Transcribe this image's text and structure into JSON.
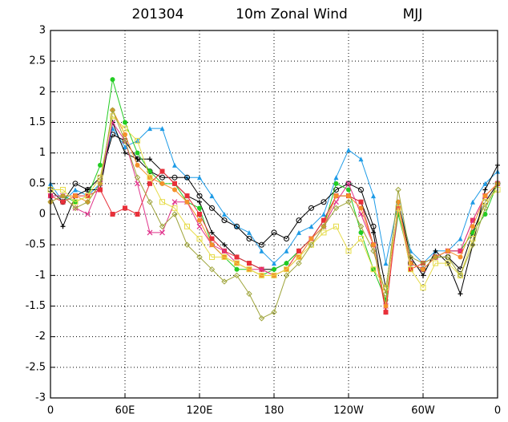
{
  "chart_data": {
    "type": "line",
    "title": [
      "201304",
      "10m Zonal Wind",
      "MJJ"
    ],
    "x": [
      0,
      10,
      20,
      30,
      40,
      50,
      60,
      70,
      80,
      90,
      100,
      110,
      120,
      130,
      140,
      150,
      160,
      170,
      180,
      190,
      200,
      210,
      220,
      230,
      240,
      250,
      260,
      270,
      280,
      290,
      300,
      310,
      320,
      330,
      340,
      350,
      360
    ],
    "xlim": [
      0,
      360
    ],
    "xticks": [
      0,
      {
        "value": 60,
        "label": "60E"
      },
      {
        "value": 120,
        "label": "120E"
      },
      180,
      {
        "value": 240,
        "label": "120W"
      },
      {
        "value": 300,
        "label": "60W"
      },
      {
        "value": 360,
        "label": "0"
      }
    ],
    "ylim": [
      -3,
      3
    ],
    "yticks": [
      -3,
      -2.5,
      -2,
      -1.5,
      -1,
      -0.5,
      0,
      0.5,
      1,
      1.5,
      2,
      2.5,
      3
    ],
    "grid": true,
    "series": [
      {
        "color": "#1e9be6",
        "marker": "triangle",
        "values": [
          0.5,
          0.2,
          0.4,
          0.3,
          0.5,
          1.4,
          1.1,
          1.2,
          1.4,
          1.4,
          0.8,
          0.6,
          0.6,
          0.3,
          0.0,
          -0.2,
          -0.3,
          -0.6,
          -0.8,
          -0.6,
          -0.3,
          -0.2,
          0.0,
          0.6,
          1.05,
          0.9,
          0.3,
          -0.8,
          0.2,
          -0.6,
          -0.8,
          -0.6,
          -0.6,
          -0.4,
          0.2,
          0.5,
          0.7
        ]
      },
      {
        "color": "#000000",
        "marker": "plus",
        "values": [
          0.3,
          -0.2,
          0.3,
          0.4,
          0.4,
          1.5,
          1.0,
          0.9,
          0.9,
          0.7,
          0.5,
          0.3,
          0.2,
          -0.3,
          -0.5,
          -0.7,
          -0.8,
          -0.9,
          -0.9,
          -0.8,
          -0.6,
          -0.4,
          -0.1,
          0.3,
          0.3,
          0.2,
          -0.3,
          -1.6,
          0.2,
          -0.7,
          -1.0,
          -0.6,
          -0.8,
          -1.3,
          -0.5,
          0.4,
          0.8
        ]
      },
      {
        "color": "#000000",
        "marker": "circle-open",
        "values": [
          0.4,
          0.2,
          0.5,
          0.4,
          0.6,
          1.3,
          1.2,
          0.9,
          0.7,
          0.6,
          0.6,
          0.6,
          0.3,
          0.1,
          -0.1,
          -0.2,
          -0.4,
          -0.5,
          -0.3,
          -0.4,
          -0.1,
          0.1,
          0.2,
          0.4,
          0.5,
          0.4,
          -0.2,
          -1.2,
          0.1,
          -0.8,
          -0.9,
          -0.7,
          -0.7,
          -0.9,
          -0.3,
          0.2,
          0.5
        ]
      },
      {
        "color": "#22cc22",
        "marker": "dot",
        "values": [
          0.3,
          0.3,
          0.2,
          0.3,
          0.8,
          2.2,
          1.5,
          1.0,
          0.7,
          0.5,
          0.5,
          0.2,
          0.1,
          -0.5,
          -0.7,
          -0.9,
          -0.9,
          -1.0,
          -0.9,
          -0.8,
          -0.6,
          -0.4,
          -0.2,
          0.5,
          0.4,
          -0.3,
          -0.9,
          -1.4,
          0.0,
          -0.8,
          -0.9,
          -0.7,
          -0.6,
          -0.6,
          -0.3,
          0.0,
          0.5
        ]
      },
      {
        "color": "#e8303a",
        "marker": "square",
        "values": [
          0.3,
          0.2,
          0.3,
          0.3,
          0.4,
          0.0,
          0.1,
          0.0,
          0.5,
          0.7,
          0.5,
          0.3,
          0.0,
          -0.4,
          -0.6,
          -0.7,
          -0.8,
          -0.9,
          -1.0,
          -0.9,
          -0.6,
          -0.4,
          -0.1,
          0.3,
          0.3,
          0.2,
          -0.5,
          -1.6,
          0.1,
          -0.9,
          -0.8,
          -0.7,
          -0.6,
          -0.6,
          -0.1,
          0.3,
          0.5
        ]
      },
      {
        "color": "#e0348c",
        "marker": "cross",
        "values": [
          0.3,
          0.3,
          0.1,
          0.0,
          0.5,
          1.5,
          1.2,
          0.5,
          -0.3,
          -0.3,
          0.2,
          0.2,
          -0.2,
          -0.5,
          -0.6,
          -0.8,
          -0.9,
          -0.9,
          -1.0,
          -0.9,
          -0.7,
          -0.4,
          -0.2,
          0.2,
          0.5,
          0.0,
          -0.5,
          -1.5,
          0.1,
          -0.8,
          -0.9,
          -0.7,
          -0.6,
          -0.6,
          -0.1,
          0.3,
          0.5
        ]
      },
      {
        "color": "#f5912b",
        "marker": "dot",
        "values": [
          0.2,
          0.3,
          0.3,
          0.2,
          0.5,
          1.7,
          1.3,
          0.8,
          0.6,
          0.5,
          0.4,
          0.2,
          -0.1,
          -0.5,
          -0.7,
          -0.8,
          -0.9,
          -1.0,
          -1.0,
          -0.9,
          -0.7,
          -0.4,
          -0.2,
          0.3,
          0.3,
          0.1,
          -0.5,
          -1.5,
          0.2,
          -0.8,
          -0.9,
          -0.7,
          -0.6,
          -0.7,
          -0.2,
          0.3,
          0.5
        ]
      },
      {
        "color": "#e6dc4a",
        "marker": "square-open",
        "values": [
          0.4,
          0.4,
          0.2,
          0.3,
          0.6,
          1.6,
          1.4,
          1.2,
          0.6,
          0.2,
          0.1,
          -0.2,
          -0.4,
          -0.7,
          -0.7,
          -0.8,
          -0.9,
          -1.0,
          -1.0,
          -0.9,
          -0.7,
          -0.5,
          -0.3,
          -0.2,
          -0.6,
          -0.4,
          -0.9,
          -1.2,
          0.1,
          -0.9,
          -1.2,
          -0.8,
          -0.8,
          -1.0,
          -0.4,
          0.2,
          0.4
        ]
      },
      {
        "color": "#9ea43a",
        "marker": "diamond-open",
        "values": [
          0.2,
          0.3,
          0.1,
          0.2,
          0.5,
          1.7,
          1.2,
          0.6,
          0.2,
          -0.2,
          0.0,
          -0.5,
          -0.7,
          -0.9,
          -1.1,
          -1.0,
          -1.3,
          -1.7,
          -1.6,
          -1.0,
          -0.8,
          -0.5,
          -0.2,
          0.1,
          0.2,
          -0.2,
          -0.6,
          -1.3,
          0.4,
          -0.7,
          -0.8,
          -0.7,
          -0.7,
          -1.0,
          -0.5,
          0.1,
          0.5
        ]
      }
    ]
  }
}
